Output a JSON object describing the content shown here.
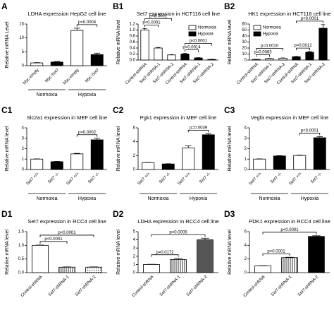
{
  "chart_data": [
    {
      "type": "bar",
      "panel": "A",
      "title": "LDHA expression HepG2 cell line",
      "ylabel": "Relative mRNA Level",
      "categories": [
        "Myc-empty",
        "Myc-Set7",
        "Myc-empty",
        "Myc-Set7"
      ],
      "series": [
        {
          "colors": [
            "#ffffff",
            "#000000",
            "#ffffff",
            "#000000"
          ],
          "values": [
            1,
            1.3,
            12.7,
            4
          ],
          "errors": [
            0.1,
            0.2,
            0.8,
            0.5
          ]
        }
      ],
      "ylim": [
        0,
        15
      ],
      "yticks": [
        0,
        5,
        10,
        15
      ],
      "groups": [
        {
          "label": "Normoxia",
          "from": 0,
          "to": 1
        },
        {
          "label": "Hypoxia",
          "from": 2,
          "to": 3
        }
      ],
      "annotations": [
        {
          "label": "p=0.0004",
          "from": 2,
          "to": 3
        }
      ]
    },
    {
      "type": "bar",
      "panel": "B1",
      "title": "Set7 expression in HCT116 cell line",
      "ylabel": "Relative mRNA level",
      "categories": [
        "Control-shRNA",
        "Set7-shRNA-1",
        "Set7-shRNA-2",
        "Control-shRNA",
        "Set7-shRNA-1",
        "Set7-shRNA-2"
      ],
      "series": [
        {
          "name": "Normoxia",
          "color": "#ffffff",
          "values": [
            1.0,
            0.4,
            0.17,
            null,
            null,
            null
          ],
          "errors": [
            0.05,
            0.02,
            0.01,
            null,
            null,
            null
          ]
        },
        {
          "name": "Hypoxia",
          "color": "#000000",
          "values": [
            null,
            null,
            null,
            0.2,
            0.07,
            0.02
          ],
          "errors": [
            null,
            null,
            null,
            0.02,
            0.01,
            0.005
          ]
        }
      ],
      "ylim": [
        0,
        1.2
      ],
      "yticks": [
        {
          "value": 0,
          "label": "0.0"
        },
        {
          "value": 0.2,
          "label": "0.2"
        },
        {
          "value": 0.4,
          "label": "0.4"
        },
        {
          "value": 0.6,
          "label": "0.6"
        },
        {
          "value": 0.8,
          "label": "0.8"
        },
        {
          "value": 1.0,
          "label": "1.0"
        },
        {
          "value": 1.2,
          "label": "1.2"
        }
      ],
      "legend": "top-right",
      "annotations": [
        {
          "label": "p<0.0001",
          "from": 0,
          "to": 1
        },
        {
          "label": "p<0.0001",
          "from": 0,
          "to": 2
        },
        {
          "label": "p=0.0014",
          "from": 3,
          "to": 4
        },
        {
          "label": "p<0.0001",
          "from": 3,
          "to": 5
        }
      ]
    },
    {
      "type": "bar",
      "panel": "B2",
      "title": "HK1 expression in HCT116 cell line",
      "ylabel": "Relative mRNA level",
      "categories": [
        "Control-shRNA",
        "Set7-shRNA-1",
        "Set7-shRNA-2",
        "Control-shRNA",
        "Set7-shRNA-1",
        "Set7-shRNA-2"
      ],
      "series": [
        {
          "name": "Normoxia",
          "color": "#ffffff",
          "values": [
            1,
            2.5,
            3,
            null,
            null,
            null
          ],
          "errors": [
            0.2,
            0.4,
            0.5,
            null,
            null,
            null
          ]
        },
        {
          "name": "Hypoxia",
          "color": "#000000",
          "values": [
            null,
            null,
            null,
            5.5,
            13,
            53
          ],
          "errors": [
            null,
            null,
            null,
            0.5,
            1,
            6
          ]
        }
      ],
      "ylim": [
        0,
        60
      ],
      "yticks": [
        0,
        10,
        20,
        30,
        40,
        50,
        60
      ],
      "legend": "top-left",
      "annotations": [
        {
          "label": "p=0.0063",
          "from": 0,
          "to": 1
        },
        {
          "label": "p=0.0010",
          "from": 0,
          "to": 2
        },
        {
          "label": "p=0.0012",
          "from": 3,
          "to": 4
        },
        {
          "label": "p<0.0001",
          "from": 3,
          "to": 5
        }
      ]
    },
    {
      "type": "bar",
      "panel": "C1",
      "title": "Slc2a1 expression in MEF cell line",
      "ylabel": "Relative mRNA level",
      "categories": [
        "Set7 +/+",
        "Set7 -/-",
        "Set7 +/+",
        "Set7 -/-"
      ],
      "series": [
        {
          "colors": [
            "#ffffff",
            "#000000",
            "#ffffff",
            "#000000"
          ],
          "values": [
            1,
            0.75,
            1.5,
            2.85
          ],
          "errors": [
            0.02,
            0.03,
            0.05,
            0.15
          ]
        }
      ],
      "ylim": [
        0,
        4
      ],
      "yticks": [
        0,
        1,
        2,
        3,
        4
      ],
      "groups": [
        {
          "label": "Normoxia",
          "from": 0,
          "to": 1
        },
        {
          "label": "Hypoxia",
          "from": 2,
          "to": 3
        }
      ],
      "annotations": [
        {
          "label": "p=0.0002",
          "from": 2,
          "to": 3
        }
      ]
    },
    {
      "type": "bar",
      "panel": "C2",
      "title": "Pgk1 expression in MEF cell line",
      "ylabel": "Relative mRNA level",
      "categories": [
        "Set7 +/+",
        "Set7 -/-",
        "Set7 +/+",
        "Set7 -/-"
      ],
      "series": [
        {
          "colors": [
            "#ffffff",
            "#000000",
            "#ffffff",
            "#000000"
          ],
          "values": [
            1,
            0.8,
            3.1,
            5.0
          ],
          "errors": [
            0.02,
            0.03,
            0.3,
            0.15
          ]
        }
      ],
      "ylim": [
        0,
        6
      ],
      "yticks": [
        0,
        2,
        4,
        6
      ],
      "groups": [
        {
          "label": "Normoxia",
          "from": 0,
          "to": 1
        },
        {
          "label": "Hypoxia",
          "from": 2,
          "to": 3
        }
      ],
      "annotations": [
        {
          "label": "p=0.0039",
          "from": 2,
          "to": 3
        }
      ]
    },
    {
      "type": "bar",
      "panel": "C3",
      "title": "Vegfa expression in MEF cell line",
      "ylabel": "Relative mRNA level",
      "categories": [
        "Set7 +/+",
        "Set7 -/-",
        "Set7 +/+",
        "Set7 -/-"
      ],
      "series": [
        {
          "colors": [
            "#ffffff",
            "#000000",
            "#ffffff",
            "#000000"
          ],
          "values": [
            1,
            1.3,
            1.35,
            3.05
          ],
          "errors": [
            0.02,
            0.03,
            0.03,
            0.1
          ]
        }
      ],
      "ylim": [
        0,
        4
      ],
      "yticks": [
        0,
        1,
        2,
        3,
        4
      ],
      "groups": [
        {
          "label": "Normoxia",
          "from": 0,
          "to": 1
        },
        {
          "label": "Hypoxia",
          "from": 2,
          "to": 3
        }
      ],
      "annotations": [
        {
          "label": "p<0.0001",
          "from": 2,
          "to": 3
        }
      ]
    },
    {
      "type": "bar",
      "panel": "D1",
      "title": "Set7 expression in RCC4 cell line",
      "ylabel": "Relative mRNA level",
      "categories": [
        "Control-shRNA",
        "Set7-shRNA-1",
        "Set7-shRNA-2"
      ],
      "series": [
        {
          "colors": [
            "#ffffff",
            "#ffffff",
            "#ffffff"
          ],
          "patterns": [
            "none",
            "stripes",
            "dots"
          ],
          "values": [
            1.0,
            0.2,
            0.2
          ],
          "errors": [
            0.01,
            0.01,
            0.01
          ]
        }
      ],
      "ylim": [
        0,
        1.5
      ],
      "yticks": [
        {
          "value": 0,
          "label": "0.0"
        },
        {
          "value": 0.5,
          "label": "0.5"
        },
        {
          "value": 1.0,
          "label": "1.0"
        },
        {
          "value": 1.5,
          "label": "1.5"
        }
      ],
      "annotations": [
        {
          "label": "p<0.0001",
          "from": 0,
          "to": 1
        },
        {
          "label": "p<0.0001",
          "from": 0,
          "to": 2
        }
      ]
    },
    {
      "type": "bar",
      "panel": "D2",
      "title": "LDHA expression in RCC4 cell line",
      "ylabel": "Relative mRNA level",
      "categories": [
        "Control-shRNA",
        "Set7-shRNA-1",
        "Set7-shRNA-2"
      ],
      "series": [
        {
          "colors": [
            "#ffffff",
            "#ffffff",
            "#555555"
          ],
          "patterns": [
            "none",
            "stripes",
            "none"
          ],
          "values": [
            1,
            1.6,
            4.0
          ],
          "errors": [
            0.02,
            0.15,
            0.2
          ]
        }
      ],
      "ylim": [
        0,
        5
      ],
      "yticks": [
        0,
        1,
        2,
        3,
        4,
        5
      ],
      "annotations": [
        {
          "label": "p=0.0172",
          "from": 0,
          "to": 1
        },
        {
          "label": "p=0.0005",
          "from": 0,
          "to": 2
        }
      ]
    },
    {
      "type": "bar",
      "panel": "D3",
      "title": "PDK1 expression in RCC4 cell line",
      "ylabel": "Relative mRNA level",
      "categories": [
        "Control-shRNA",
        "Set7-shRNA-1",
        "Set7-shRNA-2"
      ],
      "series": [
        {
          "colors": [
            "#ffffff",
            "#ffffff",
            "#000000"
          ],
          "patterns": [
            "none",
            "stripes",
            "none"
          ],
          "values": [
            1,
            2.2,
            5.3
          ],
          "errors": [
            0.02,
            0.05,
            0.1
          ]
        }
      ],
      "ylim": [
        0,
        6
      ],
      "yticks": [
        0,
        2,
        4,
        6
      ],
      "annotations": [
        {
          "label": "p<0.0001",
          "from": 0,
          "to": 1
        },
        {
          "label": "p<0.0001",
          "from": 0,
          "to": 2
        }
      ]
    }
  ]
}
